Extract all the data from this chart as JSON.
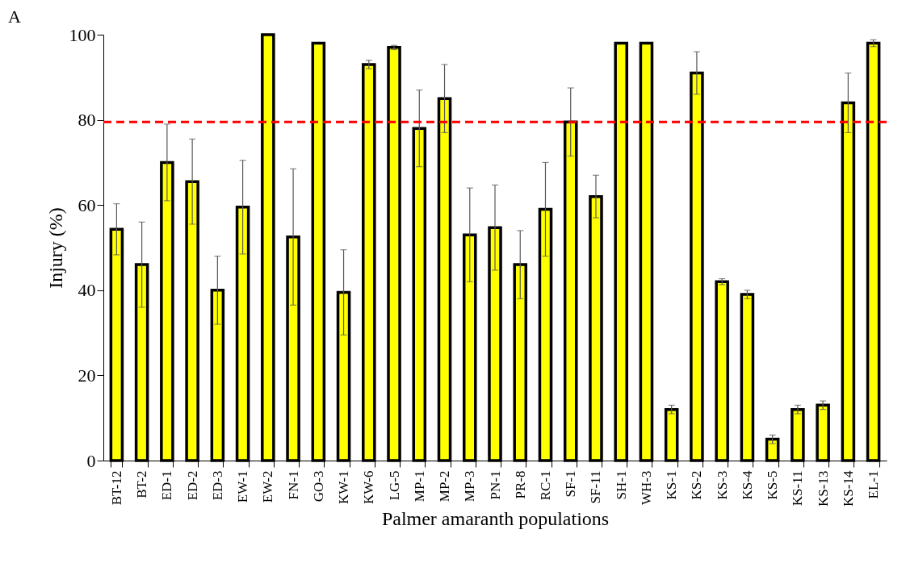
{
  "chart_data": {
    "type": "bar",
    "xlabel": "Palmer amaranth populations",
    "ylabel": "Injury (%)",
    "categories": [
      "BT-12",
      "BT-2",
      "ED-1",
      "ED-2",
      "ED-3",
      "EW-1",
      "EW-2",
      "FN-1",
      "GO-3",
      "KW-1",
      "KW-6",
      "LG-5",
      "MP-1",
      "MP-2",
      "MP-3",
      "PN-1",
      "PR-8",
      "RC-1",
      "SF-1",
      "SF-11",
      "SH-1",
      "WH-3",
      "KS-1",
      "KS-2",
      "KS-3",
      "KS-4",
      "KS-5",
      "KS-11",
      "KS-13",
      "KS-14",
      "EL-1"
    ],
    "values": [
      54.3,
      46,
      70,
      65.5,
      40,
      59.5,
      100,
      52.5,
      98,
      39.5,
      93,
      97,
      78,
      85,
      53,
      54.7,
      46,
      59,
      79.5,
      62,
      98,
      98,
      12,
      91,
      42,
      39,
      5,
      12,
      13,
      84,
      98
    ],
    "errors": [
      6,
      10,
      9,
      10,
      8,
      11,
      null,
      16,
      null,
      10,
      1,
      0.5,
      9,
      8,
      11,
      10,
      8,
      11,
      8,
      5,
      null,
      null,
      1,
      5,
      0.7,
      1,
      1,
      1,
      1,
      7,
      0.8
    ],
    "color": "#ffff00",
    "ylim": [
      0,
      100
    ],
    "yticks": [
      0,
      20,
      40,
      60,
      80,
      100
    ],
    "grid": false,
    "ref_lines": [
      {
        "axis": "y",
        "value": 79.5,
        "color": "#ff0000",
        "line_style": "dashed"
      }
    ],
    "annotations": [
      "A"
    ]
  }
}
